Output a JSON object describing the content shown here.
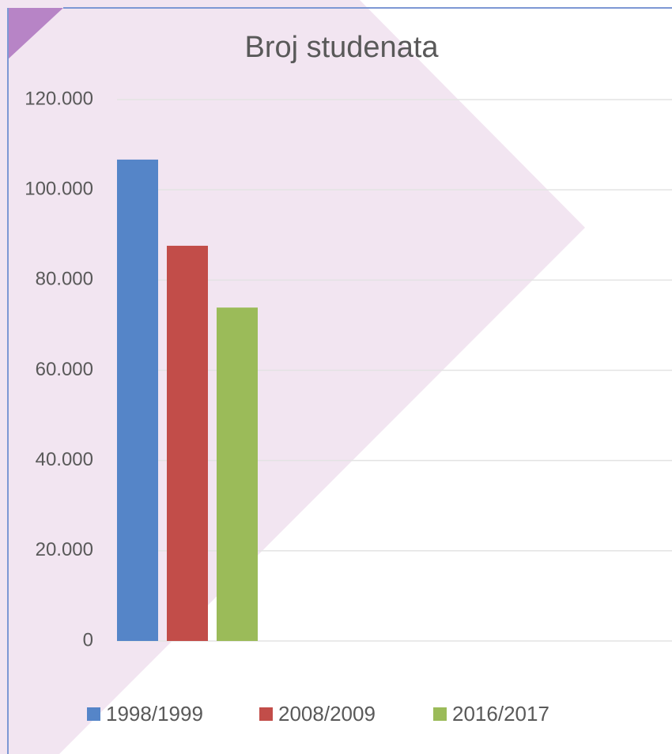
{
  "chart_data": {
    "type": "bar",
    "title": "Broj studenata",
    "categories": [
      null
    ],
    "series": [
      {
        "name": "1998/1999",
        "color": "#5585c8",
        "values": [
          106700
        ]
      },
      {
        "name": "2008/2009",
        "color": "#c24d49",
        "values": [
          87600
        ]
      },
      {
        "name": "2016/2017",
        "color": "#9bbb59",
        "values": [
          73900
        ]
      }
    ],
    "ylim": [
      0,
      120000
    ],
    "yticks": [
      0,
      {
        "value": 20000,
        "label": "20.000"
      },
      {
        "value": 40000,
        "label": "40.000"
      },
      {
        "value": 60000,
        "label": "60.000"
      },
      {
        "value": 80000,
        "label": "80.000"
      },
      {
        "value": 100000,
        "label": "100.000"
      },
      {
        "value": 120000,
        "label": "120.000"
      }
    ],
    "grid": true,
    "legend": "bottom"
  }
}
